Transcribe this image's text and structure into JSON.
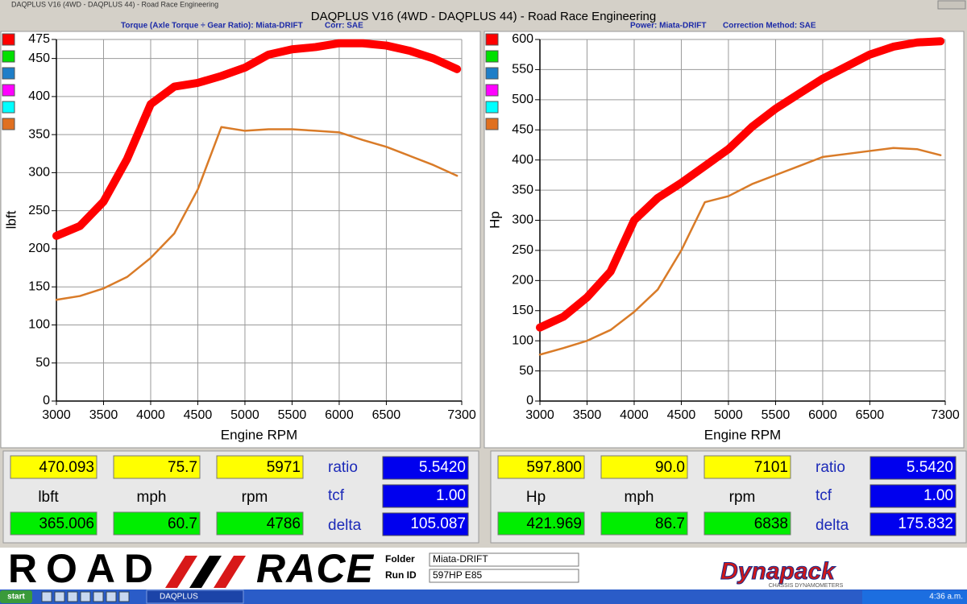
{
  "window": {
    "caption": "DAQPLUS V16 (4WD - DAQPLUS 44) - Road Race Engineering",
    "heading": "DAQPLUS V16 (4WD - DAQPLUS 44) - Road Race Engineering",
    "swatches": [
      "#ff0000",
      "#00e000",
      "#1e7ec8",
      "#ff00ff",
      "#00ffff",
      "#e07020"
    ]
  },
  "chart_data": [
    {
      "type": "line",
      "subtitles": [
        "Torque (Axle Torque ÷ Gear Ratio): Miata-DRIFT",
        "Corr: SAE"
      ],
      "xlabel": "Engine RPM",
      "ylabel": "lbft",
      "x": [
        3000,
        3250,
        3500,
        3750,
        4000,
        4250,
        4500,
        4750,
        5000,
        5250,
        5500,
        5750,
        6000,
        6250,
        6500,
        6750,
        7000,
        7250
      ],
      "series": [
        {
          "color": "#ff0000",
          "values": [
            217,
            230,
            262,
            318,
            390,
            413,
            418,
            427,
            438,
            455,
            462,
            465,
            470,
            470,
            467,
            460,
            450,
            436
          ]
        },
        {
          "color": "#d97b28",
          "values": [
            133,
            138,
            148,
            163,
            188,
            220,
            278,
            360,
            355,
            357,
            357,
            355,
            353,
            343,
            334,
            322,
            310,
            296
          ]
        }
      ],
      "xlim": [
        3000,
        7300
      ],
      "xticks": [
        3000,
        3500,
        4000,
        4500,
        5000,
        5500,
        6000,
        6500,
        7300
      ],
      "ylim": [
        0,
        475
      ],
      "yticks": [
        0,
        50,
        100,
        150,
        200,
        250,
        300,
        350,
        400,
        450,
        475
      ],
      "grid": true
    },
    {
      "type": "line",
      "subtitles": [
        "Power: Miata-DRIFT",
        "Correction Method: SAE"
      ],
      "xlabel": "Engine RPM",
      "ylabel": "Hp",
      "x": [
        3000,
        3250,
        3500,
        3750,
        4000,
        4250,
        4500,
        4750,
        5000,
        5250,
        5500,
        5750,
        6000,
        6250,
        6500,
        6750,
        7000,
        7250
      ],
      "series": [
        {
          "color": "#ff0000",
          "values": [
            122,
            140,
            172,
            215,
            300,
            337,
            362,
            390,
            418,
            455,
            485,
            510,
            535,
            555,
            575,
            588,
            595,
            597
          ]
        },
        {
          "color": "#d97b28",
          "values": [
            77,
            88,
            100,
            118,
            148,
            185,
            250,
            330,
            340,
            360,
            375,
            390,
            405,
            410,
            415,
            420,
            418,
            408
          ]
        }
      ],
      "xlim": [
        3000,
        7300
      ],
      "xticks": [
        3000,
        3500,
        4000,
        4500,
        5000,
        5500,
        6000,
        6500,
        7300
      ],
      "ylim": [
        0,
        600
      ],
      "yticks": [
        0,
        50,
        100,
        150,
        200,
        250,
        300,
        350,
        400,
        450,
        500,
        550,
        600
      ],
      "grid": true
    }
  ],
  "readouts": [
    {
      "top": [
        "470.093",
        "75.7",
        "5971"
      ],
      "units": [
        "lbft",
        "mph",
        "rpm"
      ],
      "bottom": [
        "365.006",
        "60.7",
        "4786"
      ],
      "params": [
        {
          "label": "ratio",
          "value": "5.5420"
        },
        {
          "label": "tcf",
          "value": "1.00"
        },
        {
          "label": "delta",
          "value": "105.087"
        }
      ]
    },
    {
      "top": [
        "597.800",
        "90.0",
        "7101"
      ],
      "units": [
        "Hp",
        "mph",
        "rpm"
      ],
      "bottom": [
        "421.969",
        "86.7",
        "6838"
      ],
      "params": [
        {
          "label": "ratio",
          "value": "5.5420"
        },
        {
          "label": "tcf",
          "value": "1.00"
        },
        {
          "label": "delta",
          "value": "175.832"
        }
      ]
    }
  ],
  "footer": {
    "logo_left": "ROAD",
    "logo_right": "RACE",
    "fields": [
      {
        "label": "Folder",
        "value": "Miata-DRIFT"
      },
      {
        "label": "Run ID",
        "value": "597HP E85"
      }
    ],
    "brand": "Dynapack",
    "brand_sub": "CHASSIS DYNAMOMETERS"
  },
  "taskbar": {
    "start": "start",
    "task": "DAQPLUS",
    "clock": "4:36 a.m."
  }
}
